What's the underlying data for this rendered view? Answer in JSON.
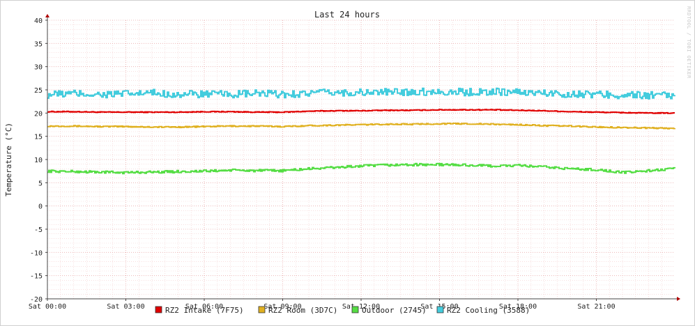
{
  "watermark": "RRDTOOL / TOBI OETIKER",
  "chart_data": {
    "type": "line",
    "title": "Last 24 hours",
    "ylabel": "Temperature (°C)",
    "xlabel": "",
    "ylim": [
      -20,
      40
    ],
    "xlim": [
      0,
      24
    ],
    "yticks": [
      -20,
      -15,
      -10,
      -5,
      0,
      5,
      10,
      15,
      20,
      25,
      30,
      35,
      40
    ],
    "xtick_labels": [
      "Sat 00:00",
      "Sat 03:00",
      "Sat 06:00",
      "Sat 09:00",
      "Sat 12:00",
      "Sat 15:00",
      "Sat 18:00",
      "Sat 21:00"
    ],
    "xtick_hours": [
      0,
      3,
      6,
      9,
      12,
      15,
      18,
      21
    ],
    "grid": true,
    "legend_position": "bottom",
    "colors": {
      "background": "#ffffff",
      "minor_grid": "#f2c9c9",
      "major_grid": "#e8a8a8",
      "axis": "#444444",
      "arrow": "#b00000"
    },
    "x": [
      0,
      1,
      2,
      3,
      4,
      5,
      6,
      7,
      8,
      9,
      10,
      11,
      12,
      13,
      14,
      15,
      16,
      17,
      18,
      19,
      20,
      21,
      22,
      23,
      24
    ],
    "series": [
      {
        "name": "RZ2 Intake (7F75)",
        "color": "#e00000",
        "noise": 0.08,
        "values": [
          20.3,
          20.3,
          20.2,
          20.2,
          20.2,
          20.2,
          20.3,
          20.3,
          20.2,
          20.2,
          20.4,
          20.5,
          20.5,
          20.6,
          20.6,
          20.7,
          20.7,
          20.7,
          20.6,
          20.5,
          20.3,
          20.2,
          20.1,
          20.0,
          20.0
        ]
      },
      {
        "name": "RZ2 Room (3D7C)",
        "color": "#e0b020",
        "noise": 0.12,
        "values": [
          17.2,
          17.2,
          17.1,
          17.1,
          17.0,
          17.0,
          17.1,
          17.2,
          17.2,
          17.1,
          17.3,
          17.4,
          17.5,
          17.6,
          17.6,
          17.7,
          17.7,
          17.6,
          17.5,
          17.3,
          17.2,
          17.0,
          16.9,
          16.8,
          16.7
        ]
      },
      {
        "name": "Outdoor (2745)",
        "color": "#55dd44",
        "noise": 0.25,
        "values": [
          7.5,
          7.4,
          7.3,
          7.2,
          7.3,
          7.4,
          7.5,
          7.7,
          7.6,
          7.6,
          8.0,
          8.3,
          8.6,
          8.8,
          8.9,
          8.9,
          8.8,
          8.6,
          8.7,
          8.4,
          8.0,
          7.8,
          7.2,
          7.6,
          8.0
        ]
      },
      {
        "name": "RZ2 Cooling (3588)",
        "color": "#44ccdd",
        "noise": 0.8,
        "values": [
          24.0,
          24.2,
          24.0,
          24.1,
          24.3,
          24.0,
          24.1,
          24.0,
          24.2,
          24.0,
          24.3,
          24.4,
          24.4,
          24.5,
          24.6,
          24.6,
          24.5,
          24.6,
          24.5,
          24.3,
          24.1,
          24.0,
          23.9,
          23.8,
          23.7
        ]
      }
    ]
  }
}
